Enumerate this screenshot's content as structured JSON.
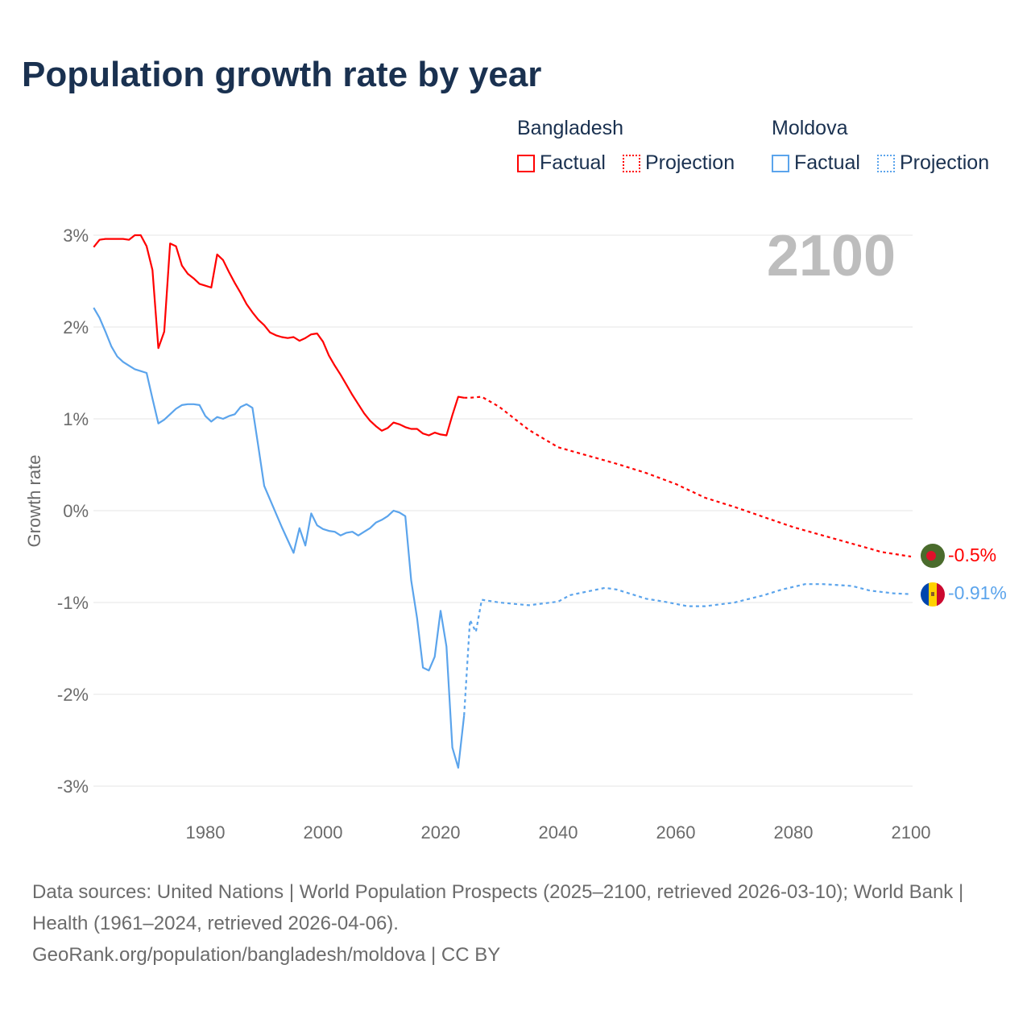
{
  "title": "Population growth rate by year",
  "legend": {
    "groups": [
      {
        "name": "Bangladesh",
        "color": "#ff0000",
        "factual": "Factual",
        "projection": "Projection"
      },
      {
        "name": "Moldova",
        "color": "#5ba4ec",
        "factual": "Factual",
        "projection": "Projection"
      }
    ]
  },
  "year_label": "2100",
  "footer": {
    "sources": "Data sources: United Nations | World Population Prospects (2025–2100, retrieved 2026-03-10); World Bank | Health (1961–2024, retrieved 2026-04-06).",
    "credit": "GeoRank.org/population/bangladesh/moldova | CC BY"
  },
  "chart_data": {
    "type": "line",
    "title": "Population growth rate by year",
    "xlabel": "",
    "ylabel": "Growth rate",
    "xlim": [
      1961,
      2100
    ],
    "ylim": [
      -3.3,
      3.2
    ],
    "x_ticks": [
      1980,
      2000,
      2020,
      2040,
      2060,
      2080,
      2100
    ],
    "y_ticks": [
      3,
      2,
      1,
      0,
      -1,
      -2,
      -3
    ],
    "y_tick_labels": [
      "3%",
      "2%",
      "1%",
      "0%",
      "-1%",
      "-2%",
      "-3%"
    ],
    "grid": true,
    "end_labels": [
      "-0.5%",
      "-0.91%"
    ],
    "series": [
      {
        "name": "Bangladesh Factual",
        "color": "#ff0000",
        "dashed": false,
        "x": [
          1961,
          1962,
          1963,
          1964,
          1965,
          1966,
          1967,
          1968,
          1969,
          1970,
          1971,
          1972,
          1973,
          1974,
          1975,
          1976,
          1977,
          1978,
          1979,
          1980,
          1981,
          1982,
          1983,
          1984,
          1985,
          1986,
          1987,
          1988,
          1989,
          1990,
          1991,
          1992,
          1993,
          1994,
          1995,
          1996,
          1997,
          1998,
          1999,
          2000,
          2001,
          2002,
          2003,
          2004,
          2005,
          2006,
          2007,
          2008,
          2009,
          2010,
          2011,
          2012,
          2013,
          2014,
          2015,
          2016,
          2017,
          2018,
          2019,
          2020,
          2021,
          2022,
          2023,
          2024
        ],
        "y": [
          2.87,
          2.95,
          2.96,
          2.96,
          2.96,
          2.96,
          2.95,
          3.0,
          3.0,
          2.88,
          2.62,
          1.77,
          1.95,
          2.91,
          2.88,
          2.67,
          2.58,
          2.53,
          2.47,
          2.45,
          2.43,
          2.79,
          2.73,
          2.6,
          2.48,
          2.37,
          2.25,
          2.16,
          2.08,
          2.02,
          1.94,
          1.91,
          1.89,
          1.88,
          1.89,
          1.85,
          1.88,
          1.92,
          1.93,
          1.84,
          1.69,
          1.58,
          1.48,
          1.37,
          1.26,
          1.16,
          1.06,
          0.98,
          0.92,
          0.87,
          0.9,
          0.96,
          0.94,
          0.91,
          0.89,
          0.89,
          0.84,
          0.82,
          0.85,
          0.83,
          0.82,
          1.04,
          1.24,
          1.23
        ]
      },
      {
        "name": "Bangladesh Projection",
        "color": "#ff0000",
        "dashed": true,
        "x": [
          2024,
          2025,
          2027,
          2030,
          2035,
          2040,
          2045,
          2050,
          2055,
          2060,
          2065,
          2070,
          2075,
          2080,
          2085,
          2090,
          2095,
          2100
        ],
        "y": [
          1.23,
          1.23,
          1.24,
          1.13,
          0.88,
          0.69,
          0.6,
          0.51,
          0.41,
          0.29,
          0.14,
          0.04,
          -0.07,
          -0.18,
          -0.27,
          -0.36,
          -0.45,
          -0.5
        ]
      },
      {
        "name": "Moldova Factual",
        "color": "#5ba4ec",
        "dashed": false,
        "x": [
          1961,
          1962,
          1963,
          1964,
          1965,
          1966,
          1967,
          1968,
          1969,
          1970,
          1971,
          1972,
          1973,
          1974,
          1975,
          1976,
          1977,
          1978,
          1979,
          1980,
          1981,
          1982,
          1983,
          1984,
          1985,
          1986,
          1987,
          1988,
          1989,
          1990,
          1991,
          1992,
          1993,
          1994,
          1995,
          1996,
          1997,
          1998,
          1999,
          2000,
          2001,
          2002,
          2003,
          2004,
          2005,
          2006,
          2007,
          2008,
          2009,
          2010,
          2011,
          2012,
          2013,
          2014,
          2015,
          2016,
          2017,
          2018,
          2019,
          2020,
          2021,
          2022,
          2023,
          2024
        ],
        "y": [
          2.21,
          2.1,
          1.95,
          1.79,
          1.68,
          1.62,
          1.58,
          1.54,
          1.52,
          1.5,
          1.22,
          0.95,
          0.99,
          1.05,
          1.11,
          1.15,
          1.16,
          1.16,
          1.15,
          1.03,
          0.97,
          1.02,
          1.0,
          1.03,
          1.05,
          1.13,
          1.16,
          1.12,
          0.7,
          0.27,
          0.12,
          -0.03,
          -0.18,
          -0.32,
          -0.46,
          -0.19,
          -0.38,
          -0.03,
          -0.16,
          -0.2,
          -0.22,
          -0.23,
          -0.27,
          -0.24,
          -0.23,
          -0.27,
          -0.23,
          -0.19,
          -0.13,
          -0.1,
          -0.06,
          0.0,
          -0.02,
          -0.06,
          -0.76,
          -1.17,
          -1.71,
          -1.74,
          -1.59,
          -1.09,
          -1.48,
          -2.58,
          -2.8,
          -2.23
        ]
      },
      {
        "name": "Moldova Projection",
        "color": "#5ba4ec",
        "dashed": true,
        "x": [
          2024,
          2025,
          2026,
          2027,
          2030,
          2035,
          2040,
          2042,
          2045,
          2048,
          2050,
          2055,
          2058,
          2062,
          2065,
          2070,
          2075,
          2078,
          2082,
          2085,
          2090,
          2093,
          2097,
          2100
        ],
        "y": [
          -2.23,
          -1.19,
          -1.32,
          -0.97,
          -1.0,
          -1.03,
          -0.99,
          -0.92,
          -0.88,
          -0.84,
          -0.86,
          -0.96,
          -0.99,
          -1.04,
          -1.04,
          -1.0,
          -0.92,
          -0.86,
          -0.8,
          -0.8,
          -0.82,
          -0.87,
          -0.9,
          -0.91
        ]
      }
    ]
  }
}
